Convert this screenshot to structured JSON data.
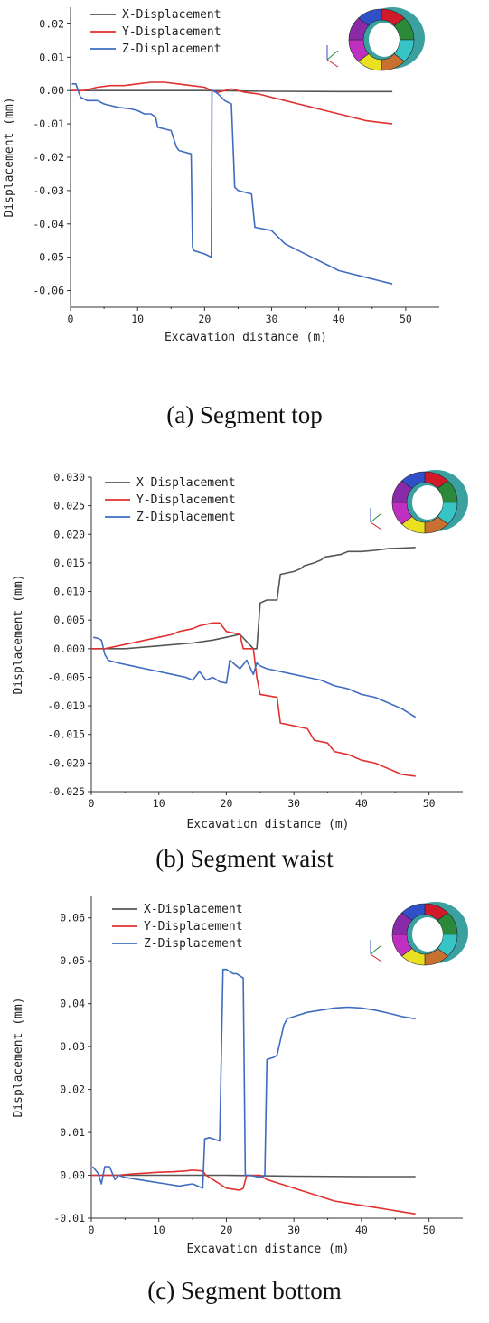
{
  "colors": {
    "x": "#555555",
    "y": "#e03030",
    "z": "#3f6cc0",
    "axis": "#333333"
  },
  "icon": "tunnel-segment-ring-icon",
  "chart_data": [
    {
      "type": "line",
      "caption": "(a) Segment top",
      "xlabel": "Excavation distance (m)",
      "ylabel": "Displacement (mm)",
      "xlim": [
        0,
        55
      ],
      "ylim": [
        -0.065,
        0.025
      ],
      "xticks": [
        0,
        10,
        20,
        30,
        40,
        50
      ],
      "yticks": [
        0.02,
        0.01,
        0.0,
        -0.01,
        -0.02,
        -0.03,
        -0.04,
        -0.05,
        -0.06
      ],
      "ytick_labels": [
        "0.02",
        "0.01",
        "0.00",
        "-0.01",
        "-0.02",
        "-0.03",
        "-0.04",
        "-0.05",
        "-0.06"
      ],
      "legend_position": "top-left",
      "series": [
        {
          "name": "X-Displacement",
          "key": "x",
          "x": [
            0,
            10,
            20,
            30,
            40,
            48
          ],
          "y": [
            0,
            0,
            0,
            -0.0002,
            -0.0003,
            -0.0003
          ]
        },
        {
          "name": "Y-Displacement",
          "key": "y",
          "x": [
            0,
            2,
            4,
            6,
            8,
            10,
            12,
            14,
            16,
            18,
            20,
            21,
            22,
            24,
            26,
            28,
            30,
            32,
            34,
            36,
            38,
            40,
            42,
            44,
            46,
            48
          ],
          "y": [
            0,
            0,
            0.001,
            0.0015,
            0.0015,
            0.002,
            0.0025,
            0.0025,
            0.002,
            0.0015,
            0.001,
            0,
            -0.0005,
            0.0005,
            -0.0005,
            -0.001,
            -0.002,
            -0.003,
            -0.004,
            -0.005,
            -0.006,
            -0.007,
            -0.008,
            -0.009,
            -0.0095,
            -0.01
          ]
        },
        {
          "name": "Z-Displacement",
          "key": "z",
          "x": [
            0.2,
            0.8,
            1.5,
            2.5,
            4,
            5,
            7,
            9,
            10,
            11,
            12,
            12.7,
            13,
            15,
            15.8,
            16.2,
            18,
            18.2,
            18.4,
            20,
            21,
            21.1,
            21.3,
            22,
            22.5,
            23,
            24,
            24.5,
            25,
            27,
            27.5,
            30,
            32,
            34,
            36,
            38,
            40,
            42,
            44,
            46,
            48
          ],
          "y": [
            0.002,
            0.002,
            -0.002,
            -0.003,
            -0.003,
            -0.004,
            -0.005,
            -0.0055,
            -0.006,
            -0.007,
            -0.007,
            -0.008,
            -0.011,
            -0.012,
            -0.017,
            -0.018,
            -0.019,
            -0.047,
            -0.048,
            -0.049,
            -0.05,
            0,
            0,
            -0.001,
            -0.002,
            -0.003,
            -0.004,
            -0.029,
            -0.03,
            -0.031,
            -0.041,
            -0.042,
            -0.046,
            -0.048,
            -0.05,
            -0.052,
            -0.054,
            -0.055,
            -0.056,
            -0.057,
            -0.058
          ]
        }
      ]
    },
    {
      "type": "line",
      "caption": "(b) Segment waist",
      "xlabel": "Excavation distance (m)",
      "ylabel": "Displacement (mm)",
      "xlim": [
        0,
        55
      ],
      "ylim": [
        -0.025,
        0.03
      ],
      "xticks": [
        0,
        10,
        20,
        30,
        40,
        50
      ],
      "yticks": [
        0.03,
        0.025,
        0.02,
        0.015,
        0.01,
        0.005,
        0.0,
        -0.005,
        -0.01,
        -0.015,
        -0.02,
        -0.025
      ],
      "ytick_labels": [
        "0.030",
        "0.025",
        "0.020",
        "0.015",
        "0.010",
        "0.005",
        "0.000",
        "-0.005",
        "-0.010",
        "-0.015",
        "-0.020",
        "-0.025"
      ],
      "legend_position": "top-left",
      "series": [
        {
          "name": "X-Displacement",
          "key": "x",
          "x": [
            0,
            5,
            10,
            15,
            18,
            20,
            22,
            24,
            24.5,
            25,
            26,
            27.5,
            28,
            30,
            31,
            31.5,
            33,
            34,
            34.5,
            36,
            37,
            38,
            40,
            42,
            44,
            46,
            48
          ],
          "y": [
            0,
            0,
            0.0005,
            0.001,
            0.0015,
            0.002,
            0.0025,
            0,
            0,
            0.008,
            0.0085,
            0.0085,
            0.013,
            0.0135,
            0.014,
            0.0145,
            0.015,
            0.0155,
            0.016,
            0.0163,
            0.0165,
            0.017,
            0.017,
            0.0172,
            0.0175,
            0.0176,
            0.0177
          ]
        },
        {
          "name": "Y-Displacement",
          "key": "y",
          "x": [
            0,
            2,
            4,
            6,
            8,
            10,
            12,
            13,
            15,
            16,
            18,
            19,
            20,
            22,
            22.5,
            24,
            24.5,
            25,
            27.5,
            28,
            30,
            32,
            33,
            35,
            36,
            38,
            40,
            42,
            44,
            46,
            48
          ],
          "y": [
            0,
            0,
            0.0005,
            0.001,
            0.0015,
            0.002,
            0.0025,
            0.003,
            0.0035,
            0.004,
            0.0045,
            0.0045,
            0.003,
            0.0025,
            0,
            0,
            -0.005,
            -0.008,
            -0.0085,
            -0.013,
            -0.0135,
            -0.014,
            -0.016,
            -0.0165,
            -0.018,
            -0.0185,
            -0.0195,
            -0.02,
            -0.021,
            -0.022,
            -0.0223
          ]
        },
        {
          "name": "Z-Displacement",
          "key": "z",
          "x": [
            0.3,
            1,
            1.5,
            2,
            2.5,
            3,
            4,
            6,
            8,
            10,
            12,
            14,
            15,
            16,
            17,
            18,
            19,
            20,
            20.5,
            21,
            22,
            22.5,
            23,
            24,
            24.5,
            25,
            26,
            28,
            30,
            32,
            34,
            36,
            38,
            40,
            42,
            44,
            46,
            48
          ],
          "y": [
            0.002,
            0.0018,
            0.0015,
            -0.001,
            -0.002,
            -0.0022,
            -0.0025,
            -0.003,
            -0.0035,
            -0.004,
            -0.0045,
            -0.005,
            -0.0055,
            -0.004,
            -0.0055,
            -0.005,
            -0.0058,
            -0.006,
            -0.002,
            -0.0025,
            -0.0035,
            -0.0028,
            -0.002,
            -0.0045,
            -0.0025,
            -0.003,
            -0.0035,
            -0.004,
            -0.0045,
            -0.005,
            -0.0055,
            -0.0065,
            -0.007,
            -0.008,
            -0.0085,
            -0.0095,
            -0.0105,
            -0.012
          ]
        }
      ]
    },
    {
      "type": "line",
      "caption": "(c) Segment bottom",
      "xlabel": "Excavation distance (m)",
      "ylabel": "Displacement (mm)",
      "xlim": [
        0,
        55
      ],
      "ylim": [
        -0.01,
        0.065
      ],
      "xticks": [
        0,
        10,
        20,
        30,
        40,
        50
      ],
      "yticks": [
        0.06,
        0.05,
        0.04,
        0.03,
        0.02,
        0.01,
        0.0,
        -0.01
      ],
      "ytick_labels": [
        "0.06",
        "0.05",
        "0.04",
        "0.03",
        "0.02",
        "0.01",
        "0.00",
        "-0.01"
      ],
      "legend_position": "top-left",
      "series": [
        {
          "name": "X-Displacement",
          "key": "x",
          "x": [
            0,
            10,
            20,
            30,
            40,
            48
          ],
          "y": [
            0,
            0,
            0,
            -0.0002,
            -0.0003,
            -0.0003
          ]
        },
        {
          "name": "Y-Displacement",
          "key": "y",
          "x": [
            0,
            2,
            4,
            6,
            8,
            10,
            12,
            14,
            15,
            16.5,
            17,
            18,
            19,
            20,
            22,
            22.5,
            23,
            25,
            26,
            28,
            30,
            32,
            34,
            36,
            38,
            40,
            42,
            44,
            46,
            48
          ],
          "y": [
            0,
            0,
            0,
            0.0003,
            0.0005,
            0.0007,
            0.0008,
            0.001,
            0.0012,
            0.001,
            0,
            -0.001,
            -0.002,
            -0.003,
            -0.0035,
            -0.003,
            0,
            0,
            -0.001,
            -0.002,
            -0.003,
            -0.004,
            -0.005,
            -0.006,
            -0.0065,
            -0.007,
            -0.0075,
            -0.008,
            -0.0085,
            -0.009
          ]
        },
        {
          "name": "Z-Displacement",
          "key": "z",
          "x": [
            0.2,
            1,
            1.5,
            2,
            2.7,
            3.5,
            4,
            5,
            7,
            9,
            11,
            13,
            15,
            16.5,
            16.8,
            17.5,
            19,
            19.5,
            20,
            21,
            21.5,
            22.5,
            22.8,
            23.5,
            25,
            25.7,
            26,
            27,
            27.5,
            28.5,
            29,
            30,
            32,
            34,
            36,
            38,
            40,
            42,
            44,
            46,
            48
          ],
          "y": [
            0.002,
            0.0005,
            -0.002,
            0.002,
            0.002,
            -0.001,
            0,
            -0.0005,
            -0.001,
            -0.0015,
            -0.002,
            -0.0025,
            -0.002,
            -0.003,
            0.0085,
            0.0088,
            0.008,
            0.048,
            0.048,
            0.047,
            0.047,
            0.046,
            0,
            0,
            -0.0005,
            0,
            0.027,
            0.0275,
            0.028,
            0.035,
            0.0365,
            0.037,
            0.038,
            0.0385,
            0.039,
            0.0392,
            0.039,
            0.0385,
            0.0378,
            0.037,
            0.0365
          ]
        }
      ]
    }
  ]
}
